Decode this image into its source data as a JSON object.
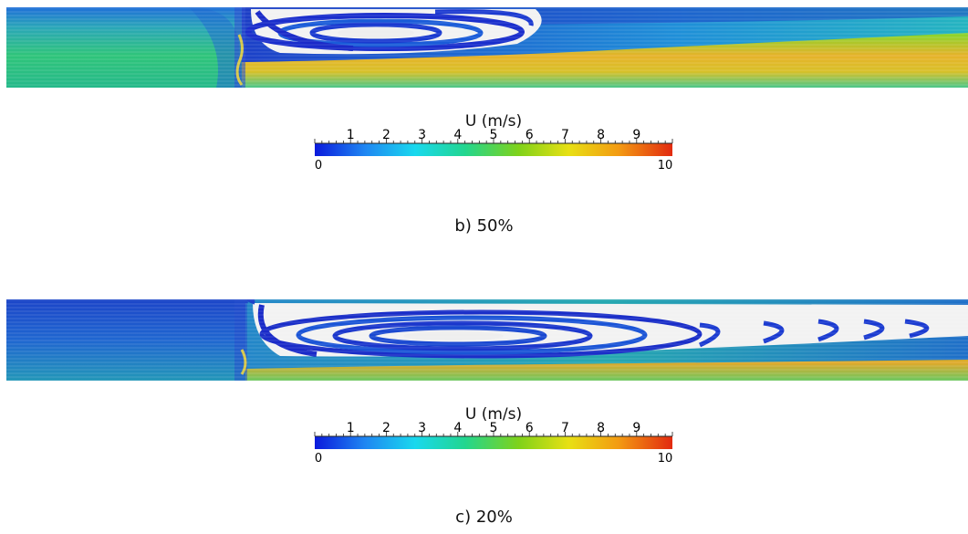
{
  "figures": [
    {
      "caption": "b) 50%",
      "colorbar": {
        "title": "U (m/s)",
        "ticks": [
          "1",
          "2",
          "3",
          "4",
          "5",
          "6",
          "7",
          "8",
          "9"
        ],
        "min_label": "0",
        "max_label": "10"
      }
    },
    {
      "caption": "c) 20%",
      "colorbar": {
        "title": "U (m/s)",
        "ticks": [
          "1",
          "2",
          "3",
          "4",
          "5",
          "6",
          "7",
          "8",
          "9"
        ],
        "min_label": "0",
        "max_label": "10"
      }
    }
  ],
  "colormap": [
    "#0a1adc",
    "#1f86f2",
    "#19d8ee",
    "#22d68f",
    "#7fd21a",
    "#e8e014",
    "#f39a12",
    "#e22a10"
  ],
  "scale": {
    "min": 0,
    "max": 10
  }
}
